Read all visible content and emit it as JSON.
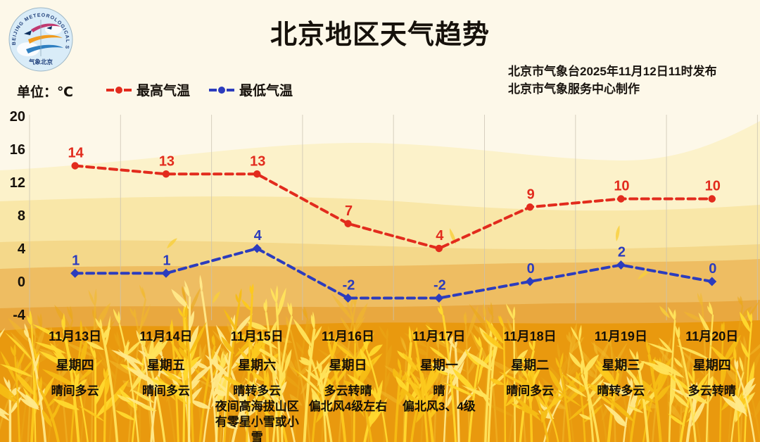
{
  "title": "北京地区天气趋势",
  "issued": {
    "line1": "北京市气象台2025年11月12日11时发布",
    "line2": "北京市气象服务中心制作"
  },
  "logo": {
    "ring_text": "BEIJING METEOROLOGICAL SERVICE",
    "bottom_text": "气象北京"
  },
  "unit_label": "单位：℃",
  "legend": {
    "high_label": "最高气温",
    "low_label": "最低气温"
  },
  "colors": {
    "high": "#e22b1d",
    "low": "#2c3cbd",
    "text": "#16110b",
    "gridline": "#c9c2b2"
  },
  "chart_data": {
    "type": "line",
    "title": "北京地区天气趋势",
    "unit": "℃",
    "categories": [
      "11月13日",
      "11月14日",
      "11月15日",
      "11月16日",
      "11月17日",
      "11月18日",
      "11月19日",
      "11月20日"
    ],
    "series": [
      {
        "name": "最高气温",
        "color": "#e22b1d",
        "marker": "circle",
        "line_style": "dashed",
        "values": [
          14,
          13,
          13,
          7,
          4,
          9,
          10,
          10
        ]
      },
      {
        "name": "最低气温",
        "color": "#2c3cbd",
        "marker": "diamond",
        "line_style": "dashed",
        "values": [
          1,
          1,
          4,
          -2,
          -2,
          0,
          2,
          0
        ]
      }
    ],
    "ylim": [
      -4,
      20
    ],
    "yticks": [
      20,
      16,
      12,
      8,
      4,
      0,
      -4
    ],
    "grid": "vertical",
    "legend_position": "top-left"
  },
  "days": [
    {
      "date": "11月13日",
      "weekday": "星期四",
      "weather": [
        "晴间多云"
      ]
    },
    {
      "date": "11月14日",
      "weekday": "星期五",
      "weather": [
        "晴间多云"
      ]
    },
    {
      "date": "11月15日",
      "weekday": "星期六",
      "weather": [
        "晴转多云",
        "夜间高海拔山区有零星小雪或小雪"
      ]
    },
    {
      "date": "11月16日",
      "weekday": "星期日",
      "weather": [
        "多云转晴",
        "偏北风4级左右"
      ]
    },
    {
      "date": "11月17日",
      "weekday": "星期一",
      "weather": [
        "晴",
        "偏北风3、4级"
      ]
    },
    {
      "date": "11月18日",
      "weekday": "星期二",
      "weather": [
        "晴间多云"
      ]
    },
    {
      "date": "11月19日",
      "weekday": "星期三",
      "weather": [
        "晴转多云"
      ]
    },
    {
      "date": "11月20日",
      "weekday": "星期四",
      "weather": [
        "多云转晴"
      ]
    }
  ]
}
